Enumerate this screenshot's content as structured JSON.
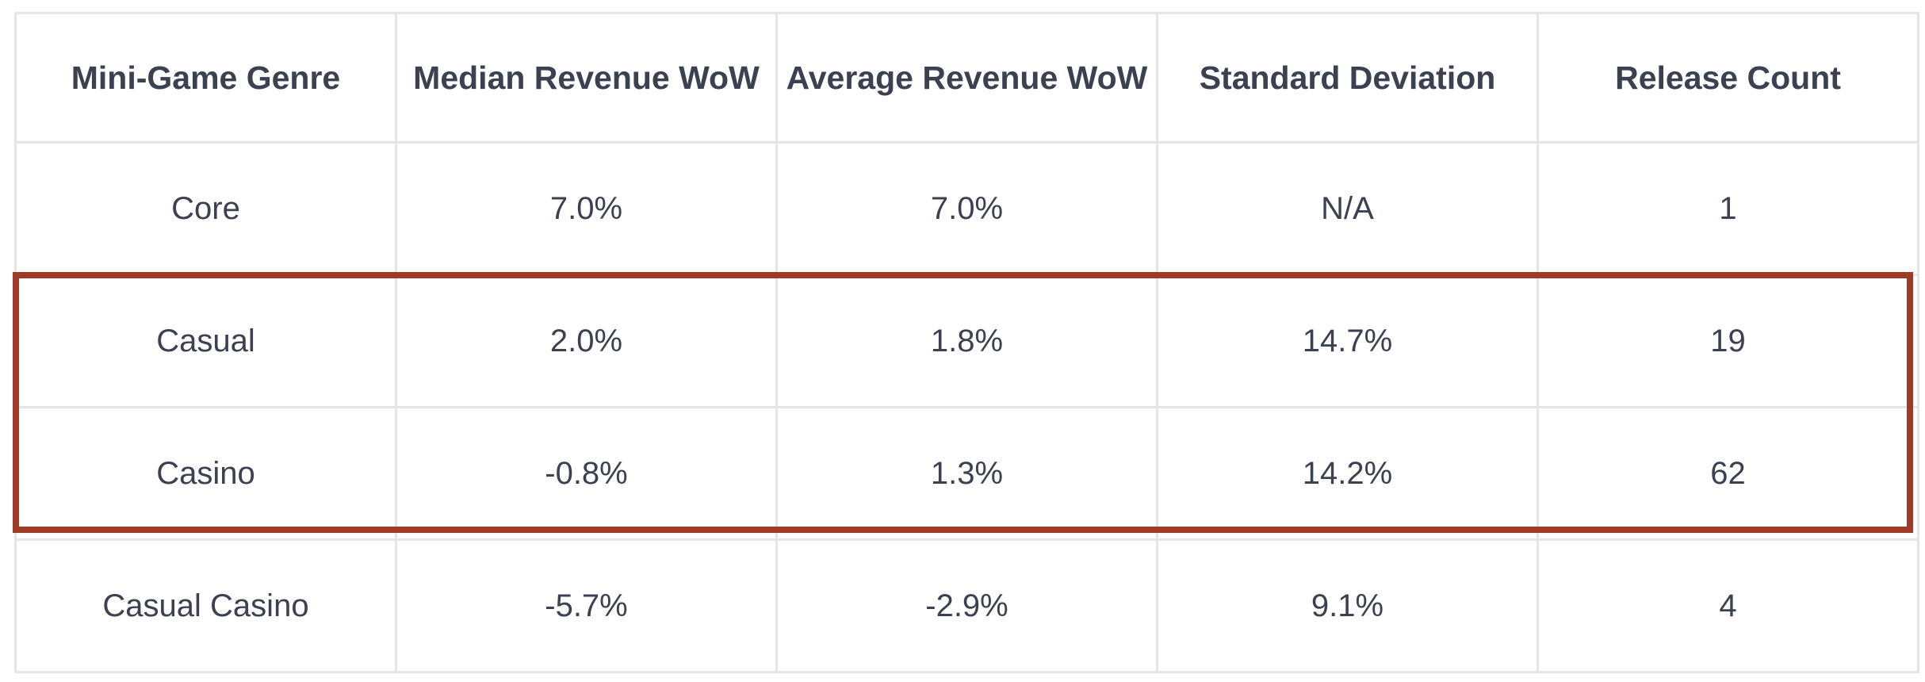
{
  "chart_data": {
    "type": "table",
    "columns": [
      "Mini-Game Genre",
      "Median Revenue WoW",
      "Average Revenue WoW",
      "Standard Deviation",
      "Release Count"
    ],
    "rows": [
      [
        "Core",
        "7.0%",
        "7.0%",
        "N/A",
        "1"
      ],
      [
        "Casual",
        "2.0%",
        "1.8%",
        "14.7%",
        "19"
      ],
      [
        "Casino",
        "-0.8%",
        "1.3%",
        "14.2%",
        "62"
      ],
      [
        "Casual Casino",
        "-5.7%",
        "-2.9%",
        "9.1%",
        "4"
      ]
    ],
    "highlighted_rows": [
      "Casual",
      "Casino"
    ],
    "highlight_color": "#9f3a27",
    "text_color": "#3b4151",
    "grid_color": "#e5e5e5"
  }
}
